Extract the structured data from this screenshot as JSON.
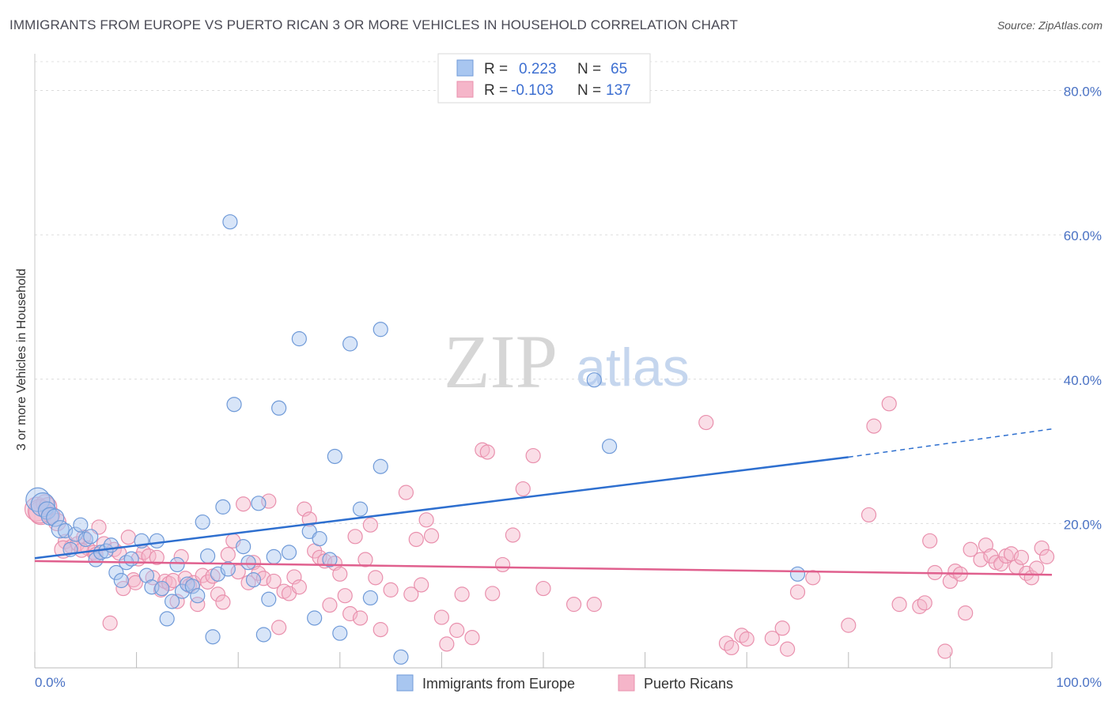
{
  "header": {
    "title": "IMMIGRANTS FROM EUROPE VS PUERTO RICAN 3 OR MORE VEHICLES IN HOUSEHOLD CORRELATION CHART",
    "source": "Source: ZipAtlas.com"
  },
  "watermark": {
    "zip": "ZIP",
    "atlas": "atlas"
  },
  "chart_data": {
    "type": "scatter",
    "title": "IMMIGRANTS FROM EUROPE VS PUERTO RICAN 3 OR MORE VEHICLES IN HOUSEHOLD CORRELATION CHART",
    "xlabel": "",
    "ylabel": "3 or more Vehicles in Household",
    "xlim": [
      0,
      100
    ],
    "ylim": [
      0,
      84
    ],
    "x_tick_labels": {
      "left": "0.0%",
      "right": "100.0%"
    },
    "y_ticks": [
      {
        "value": 20,
        "label": "20.0%"
      },
      {
        "value": 40,
        "label": "40.0%"
      },
      {
        "value": 60,
        "label": "60.0%"
      },
      {
        "value": 80,
        "label": "80.0%"
      }
    ],
    "grid": true,
    "legend_position": "top-center",
    "stats": [
      {
        "r_label": "R =",
        "r_value": "0.223",
        "n_label": "N =",
        "n_value": "65"
      },
      {
        "r_label": "R =",
        "r_value": "-0.103",
        "n_label": "N =",
        "n_value": "137"
      }
    ],
    "series": [
      {
        "name": "Immigrants from Europe",
        "color": "#a8c6f0",
        "stroke": "#6f9ad8",
        "line_color": "#2e6fcf",
        "trend": {
          "x0": 0,
          "y0": 15.2,
          "x1": 80,
          "y1": 29.2,
          "dash_to": 100,
          "dash_y": 33.1
        },
        "points": [
          [
            0.3,
            23.3
          ],
          [
            0.8,
            22.6
          ],
          [
            1.2,
            21.8
          ],
          [
            1.5,
            21.0
          ],
          [
            2.0,
            20.8
          ],
          [
            2.5,
            19.2
          ],
          [
            3.0,
            19.0
          ],
          [
            3.5,
            16.4
          ],
          [
            4.0,
            18.5
          ],
          [
            4.5,
            19.8
          ],
          [
            5.0,
            17.8
          ],
          [
            5.5,
            18.2
          ],
          [
            6.0,
            15.0
          ],
          [
            6.5,
            16.0
          ],
          [
            7.0,
            16.2
          ],
          [
            7.5,
            17.0
          ],
          [
            8.0,
            13.2
          ],
          [
            8.5,
            12.1
          ],
          [
            9.0,
            14.6
          ],
          [
            9.5,
            15.1
          ],
          [
            10.5,
            17.6
          ],
          [
            11.0,
            12.8
          ],
          [
            11.5,
            11.2
          ],
          [
            12.0,
            17.6
          ],
          [
            12.5,
            11.0
          ],
          [
            13.0,
            6.8
          ],
          [
            13.5,
            9.2
          ],
          [
            14.0,
            14.3
          ],
          [
            14.5,
            10.6
          ],
          [
            15.0,
            11.6
          ],
          [
            15.5,
            11.3
          ],
          [
            16.0,
            10.0
          ],
          [
            16.5,
            20.2
          ],
          [
            17.0,
            15.5
          ],
          [
            17.5,
            4.3
          ],
          [
            18.0,
            13.0
          ],
          [
            18.5,
            22.3
          ],
          [
            19.0,
            13.7
          ],
          [
            19.2,
            61.8
          ],
          [
            19.6,
            36.5
          ],
          [
            20.5,
            16.8
          ],
          [
            21.0,
            14.6
          ],
          [
            21.5,
            12.2
          ],
          [
            22.0,
            22.8
          ],
          [
            22.5,
            4.6
          ],
          [
            23.0,
            9.5
          ],
          [
            23.5,
            15.4
          ],
          [
            24.0,
            36.0
          ],
          [
            25.0,
            16.0
          ],
          [
            26.0,
            45.6
          ],
          [
            27.0,
            18.9
          ],
          [
            27.5,
            6.9
          ],
          [
            28.0,
            17.9
          ],
          [
            29.0,
            15.0
          ],
          [
            29.5,
            29.3
          ],
          [
            30.0,
            4.8
          ],
          [
            31.0,
            44.9
          ],
          [
            32.0,
            22.0
          ],
          [
            33.0,
            9.7
          ],
          [
            34.0,
            46.9
          ],
          [
            34.0,
            27.9
          ],
          [
            36.0,
            1.5
          ],
          [
            55.0,
            39.9
          ],
          [
            56.5,
            30.7
          ],
          [
            75.0,
            13.0
          ]
        ]
      },
      {
        "name": "Puerto Ricans",
        "color": "#f5b5c9",
        "stroke": "#e990ad",
        "line_color": "#e0608e",
        "trend": {
          "x0": 0,
          "y0": 14.8,
          "x1": 100,
          "y1": 12.9
        },
        "points": [
          [
            0.2,
            22.0
          ],
          [
            0.6,
            21.5
          ],
          [
            1.0,
            22.8
          ],
          [
            1.6,
            21.2
          ],
          [
            2.2,
            20.2
          ],
          [
            3.0,
            17.5
          ],
          [
            3.6,
            16.8
          ],
          [
            4.2,
            17.2
          ],
          [
            4.8,
            18.1
          ],
          [
            5.2,
            16.6
          ],
          [
            5.8,
            16.0
          ],
          [
            6.3,
            19.5
          ],
          [
            6.8,
            17.2
          ],
          [
            7.4,
            6.2
          ],
          [
            7.8,
            16.4
          ],
          [
            8.3,
            15.9
          ],
          [
            8.7,
            11.0
          ],
          [
            9.2,
            18.1
          ],
          [
            9.7,
            12.2
          ],
          [
            10.2,
            15.1
          ],
          [
            10.7,
            16.0
          ],
          [
            11.2,
            15.5
          ],
          [
            11.6,
            12.5
          ],
          [
            12.0,
            15.3
          ],
          [
            12.4,
            10.8
          ],
          [
            12.8,
            12.0
          ],
          [
            13.2,
            11.7
          ],
          [
            13.6,
            12.1
          ],
          [
            14.0,
            9.2
          ],
          [
            14.4,
            15.4
          ],
          [
            14.8,
            12.4
          ],
          [
            15.2,
            11.4
          ],
          [
            15.6,
            11.8
          ],
          [
            16.0,
            8.8
          ],
          [
            16.5,
            12.8
          ],
          [
            17.0,
            11.9
          ],
          [
            17.5,
            12.7
          ],
          [
            18.0,
            10.2
          ],
          [
            18.5,
            9.1
          ],
          [
            19.0,
            15.7
          ],
          [
            19.5,
            17.6
          ],
          [
            20.0,
            13.3
          ],
          [
            20.5,
            22.7
          ],
          [
            21.0,
            11.8
          ],
          [
            21.5,
            14.6
          ],
          [
            22.0,
            13.1
          ],
          [
            22.5,
            12.4
          ],
          [
            23.0,
            23.1
          ],
          [
            23.5,
            12.0
          ],
          [
            24.0,
            5.6
          ],
          [
            24.5,
            10.6
          ],
          [
            25.0,
            10.3
          ],
          [
            25.5,
            12.6
          ],
          [
            26.0,
            11.2
          ],
          [
            26.5,
            22.0
          ],
          [
            27.0,
            20.6
          ],
          [
            27.5,
            16.2
          ],
          [
            28.0,
            15.3
          ],
          [
            28.5,
            14.8
          ],
          [
            29.0,
            8.7
          ],
          [
            29.5,
            14.5
          ],
          [
            30.0,
            13.0
          ],
          [
            30.5,
            10.0
          ],
          [
            31.0,
            7.5
          ],
          [
            31.5,
            18.2
          ],
          [
            32.0,
            6.9
          ],
          [
            32.5,
            15.0
          ],
          [
            33.0,
            19.8
          ],
          [
            33.5,
            12.5
          ],
          [
            34.0,
            5.3
          ],
          [
            35.0,
            10.8
          ],
          [
            36.5,
            24.3
          ],
          [
            37.0,
            10.2
          ],
          [
            37.5,
            17.8
          ],
          [
            38.0,
            11.5
          ],
          [
            38.5,
            20.5
          ],
          [
            39.0,
            18.3
          ],
          [
            40.0,
            7.0
          ],
          [
            40.5,
            3.3
          ],
          [
            41.5,
            5.2
          ],
          [
            42.0,
            10.2
          ],
          [
            43.0,
            4.2
          ],
          [
            44.0,
            30.2
          ],
          [
            44.5,
            29.9
          ],
          [
            45.0,
            10.3
          ],
          [
            46.0,
            14.3
          ],
          [
            47.0,
            18.4
          ],
          [
            48.0,
            24.8
          ],
          [
            49.0,
            29.4
          ],
          [
            50.0,
            11.0
          ],
          [
            53.0,
            8.8
          ],
          [
            55.0,
            8.8
          ],
          [
            66.0,
            34.0
          ],
          [
            68.0,
            3.4
          ],
          [
            68.5,
            2.8
          ],
          [
            69.5,
            4.5
          ],
          [
            70.0,
            4.0
          ],
          [
            72.5,
            4.1
          ],
          [
            73.5,
            5.5
          ],
          [
            74.0,
            2.6
          ],
          [
            75.0,
            10.5
          ],
          [
            76.5,
            12.5
          ],
          [
            80.0,
            5.9
          ],
          [
            82.0,
            21.2
          ],
          [
            82.5,
            33.5
          ],
          [
            84.0,
            36.6
          ],
          [
            85.0,
            8.8
          ],
          [
            87.0,
            8.5
          ],
          [
            87.5,
            9.0
          ],
          [
            88.0,
            17.6
          ],
          [
            88.5,
            13.2
          ],
          [
            89.5,
            2.3
          ],
          [
            90.0,
            12.0
          ],
          [
            90.5,
            13.4
          ],
          [
            91.0,
            13.0
          ],
          [
            91.5,
            7.6
          ],
          [
            92.0,
            16.4
          ],
          [
            93.0,
            15.0
          ],
          [
            93.5,
            17.0
          ],
          [
            94.0,
            15.5
          ],
          [
            94.5,
            14.6
          ],
          [
            95.0,
            14.4
          ],
          [
            95.5,
            15.5
          ],
          [
            96.0,
            15.8
          ],
          [
            96.5,
            14.0
          ],
          [
            97.0,
            15.3
          ],
          [
            97.5,
            13.1
          ],
          [
            98.0,
            12.5
          ],
          [
            98.5,
            13.8
          ],
          [
            99.0,
            16.6
          ],
          [
            99.5,
            15.4
          ],
          [
            0.5,
            21.7
          ],
          [
            1.3,
            22.4
          ],
          [
            2.8,
            16.4
          ],
          [
            4.6,
            16.3
          ],
          [
            6.0,
            15.7
          ],
          [
            9.9,
            11.8
          ]
        ]
      }
    ]
  }
}
